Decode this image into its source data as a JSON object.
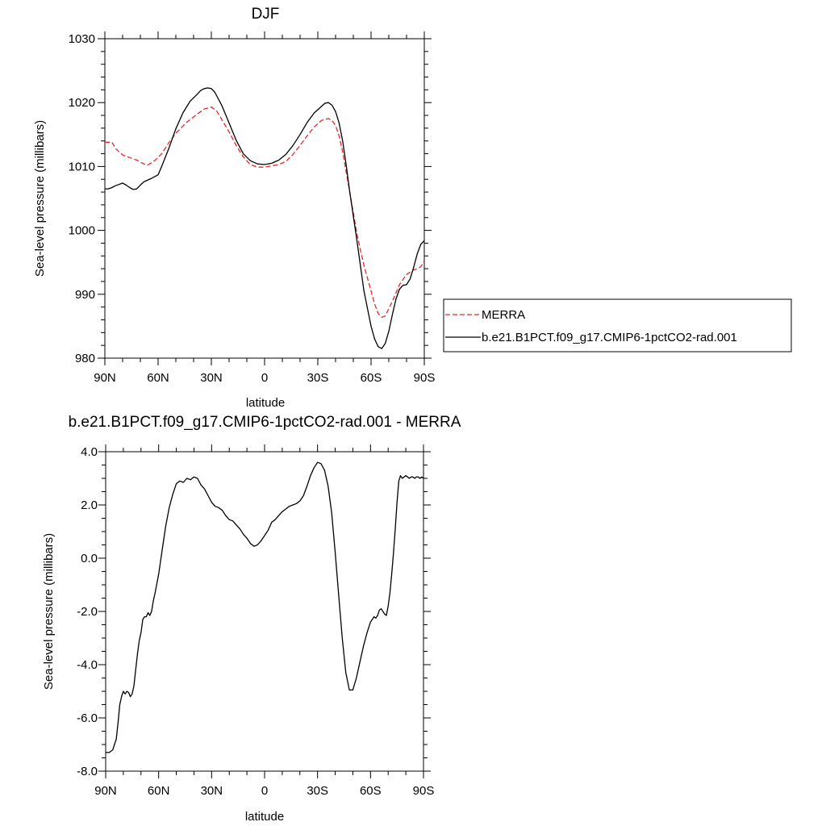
{
  "chart_data": [
    {
      "type": "line",
      "title": "DJF",
      "xlabel": "latitude",
      "ylabel": "Sea-level pressure (millibars)",
      "xlim": [
        90,
        -90
      ],
      "ylim": [
        980,
        1030
      ],
      "x_tick_values": [
        90,
        60,
        30,
        0,
        -30,
        -60,
        -90
      ],
      "x_tick_labels": [
        "90N",
        "60N",
        "30N",
        "0",
        "30S",
        "60S",
        "90S"
      ],
      "y_tick_values": [
        980,
        990,
        1000,
        1010,
        1020,
        1030
      ],
      "y_tick_labels": [
        "980",
        "990",
        "1000",
        "1010",
        "1020",
        "1030"
      ],
      "grid": false,
      "legend_position": "right",
      "series": [
        {
          "name": "MERRA",
          "color": "#e8262a",
          "dash": "dashed",
          "x": [
            90,
            86,
            84,
            80,
            76,
            72,
            68,
            66,
            62,
            58,
            54,
            50,
            44,
            38,
            34,
            30,
            27,
            24,
            20,
            16,
            12,
            8,
            4,
            0,
            -4,
            -8,
            -12,
            -16,
            -20,
            -24,
            -28,
            -32,
            -36,
            -38,
            -40,
            -42,
            -44,
            -48,
            -52,
            -56,
            -60,
            -62,
            -64,
            -66,
            -68,
            -72,
            -76,
            -80,
            -84,
            -86,
            -88,
            -90
          ],
          "y": [
            1013.8,
            1013.8,
            1012.8,
            1011.8,
            1011.4,
            1011.0,
            1010.4,
            1010.2,
            1010.9,
            1012.0,
            1013.7,
            1015.2,
            1016.9,
            1018.2,
            1019.0,
            1019.3,
            1018.7,
            1017.3,
            1015.4,
            1013.3,
            1011.5,
            1010.3,
            1009.9,
            1009.9,
            1010.1,
            1010.3,
            1010.8,
            1011.9,
            1013.3,
            1014.8,
            1016.2,
            1017.2,
            1017.5,
            1017.2,
            1016.4,
            1014.8,
            1012.3,
            1006.0,
            999.5,
            994.5,
            990.5,
            988.5,
            987.0,
            986.4,
            986.6,
            988.9,
            991.5,
            993.1,
            993.8,
            994.0,
            994.3,
            995.2
          ]
        },
        {
          "name": "b.e21.B1PCT.f09_g17.CMIP6-1pctCO2-rad.001",
          "color": "#000000",
          "dash": "solid",
          "x": [
            90,
            88,
            86,
            84,
            80,
            78,
            76,
            74,
            72,
            70,
            68,
            64,
            60,
            58,
            54,
            50,
            46,
            42,
            38,
            36,
            34,
            32,
            30,
            28,
            24,
            20,
            16,
            12,
            8,
            4,
            0,
            -4,
            -8,
            -12,
            -16,
            -20,
            -24,
            -28,
            -32,
            -34,
            -36,
            -38,
            -40,
            -42,
            -44,
            -46,
            -48,
            -52,
            -56,
            -60,
            -62,
            -64,
            -66,
            -68,
            -70,
            -72,
            -74,
            -76,
            -78,
            -80,
            -82,
            -84,
            -86,
            -88,
            -90
          ],
          "y": [
            1006.5,
            1006.5,
            1006.7,
            1007.0,
            1007.4,
            1007.1,
            1006.7,
            1006.4,
            1006.5,
            1007.1,
            1007.6,
            1008.1,
            1008.7,
            1010.0,
            1012.8,
            1015.9,
            1018.4,
            1020.2,
            1021.3,
            1021.9,
            1022.2,
            1022.3,
            1022.2,
            1021.6,
            1019.5,
            1016.8,
            1014.1,
            1012.0,
            1010.9,
            1010.4,
            1010.3,
            1010.5,
            1011.0,
            1011.9,
            1013.3,
            1015.0,
            1016.9,
            1018.4,
            1019.4,
            1019.9,
            1020.0,
            1019.6,
            1018.6,
            1016.8,
            1014.0,
            1010.2,
            1006.0,
            998.5,
            990.5,
            985.0,
            983.0,
            981.8,
            981.5,
            982.3,
            984.2,
            986.8,
            989.2,
            990.8,
            991.4,
            991.5,
            992.4,
            994.2,
            996.3,
            997.8,
            998.4
          ]
        }
      ]
    },
    {
      "type": "line",
      "title": "b.e21.B1PCT.f09_g17.CMIP6-1pctCO2-rad.001 - MERRA",
      "xlabel": "latitude",
      "ylabel": "Sea-level pressure (millibars)",
      "xlim": [
        90,
        -90
      ],
      "ylim": [
        -8.0,
        4.0
      ],
      "x_tick_values": [
        90,
        60,
        30,
        0,
        -30,
        -60,
        -90
      ],
      "x_tick_labels": [
        "90N",
        "60N",
        "30N",
        "0",
        "30S",
        "60S",
        "90S"
      ],
      "y_tick_values": [
        -8.0,
        -6.0,
        -4.0,
        -2.0,
        0.0,
        2.0,
        4.0
      ],
      "y_tick_labels": [
        "-8.0",
        "-6.0",
        "-4.0",
        "-2.0",
        "0.0",
        "2.0",
        "4.0"
      ],
      "grid": false,
      "series": [
        {
          "color": "#000000",
          "dash": "solid",
          "x": [
            90,
            88,
            86,
            85,
            84,
            83,
            82,
            81,
            80,
            79,
            78,
            77,
            76,
            75,
            74,
            73,
            72,
            71,
            70,
            69,
            68,
            67,
            66,
            65,
            64,
            63,
            62,
            60,
            58,
            56,
            54,
            52,
            50,
            48,
            46,
            44,
            42,
            40,
            38,
            36,
            34,
            32,
            30,
            28,
            26,
            24,
            22,
            20,
            18,
            16,
            14,
            12,
            10,
            8,
            6,
            4,
            2,
            0,
            -2,
            -4,
            -6,
            -8,
            -10,
            -12,
            -14,
            -16,
            -18,
            -20,
            -22,
            -24,
            -26,
            -28,
            -30,
            -32,
            -34,
            -36,
            -38,
            -40,
            -42,
            -44,
            -46,
            -48,
            -50,
            -52,
            -54,
            -56,
            -58,
            -60,
            -62,
            -63,
            -64,
            -65,
            -66,
            -67,
            -68,
            -69,
            -70,
            -71,
            -72,
            -73,
            -74,
            -75,
            -76,
            -77,
            -78,
            -79,
            -80,
            -81,
            -82,
            -83,
            -84,
            -85,
            -86,
            -87,
            -88,
            -89,
            -90
          ],
          "y": [
            -7.3,
            -7.3,
            -7.2,
            -7.0,
            -6.8,
            -6.2,
            -5.5,
            -5.2,
            -5.0,
            -5.1,
            -5.0,
            -5.05,
            -5.2,
            -5.1,
            -4.8,
            -4.2,
            -3.6,
            -3.1,
            -2.8,
            -2.3,
            -2.2,
            -2.2,
            -2.05,
            -2.15,
            -2.0,
            -1.6,
            -1.3,
            -0.6,
            0.3,
            1.2,
            1.9,
            2.4,
            2.8,
            2.9,
            2.85,
            3.0,
            2.95,
            3.05,
            3.0,
            2.75,
            2.6,
            2.35,
            2.1,
            1.95,
            1.9,
            1.8,
            1.6,
            1.45,
            1.4,
            1.25,
            1.1,
            0.9,
            0.75,
            0.55,
            0.45,
            0.5,
            0.65,
            0.85,
            1.05,
            1.35,
            1.45,
            1.6,
            1.75,
            1.85,
            1.95,
            2.0,
            2.05,
            2.15,
            2.35,
            2.7,
            3.1,
            3.4,
            3.6,
            3.55,
            3.3,
            2.7,
            1.7,
            0.2,
            -1.4,
            -3.0,
            -4.3,
            -4.95,
            -4.95,
            -4.5,
            -3.9,
            -3.3,
            -2.8,
            -2.4,
            -2.2,
            -2.25,
            -2.15,
            -1.95,
            -1.9,
            -2.0,
            -2.1,
            -2.15,
            -1.8,
            -1.3,
            -0.6,
            0.2,
            1.1,
            2.1,
            2.9,
            3.1,
            3.0,
            3.05,
            3.1,
            3.05,
            3.0,
            3.05,
            3.05,
            3.0,
            3.05,
            3.05,
            3.0,
            3.05,
            3.0
          ]
        }
      ]
    }
  ]
}
